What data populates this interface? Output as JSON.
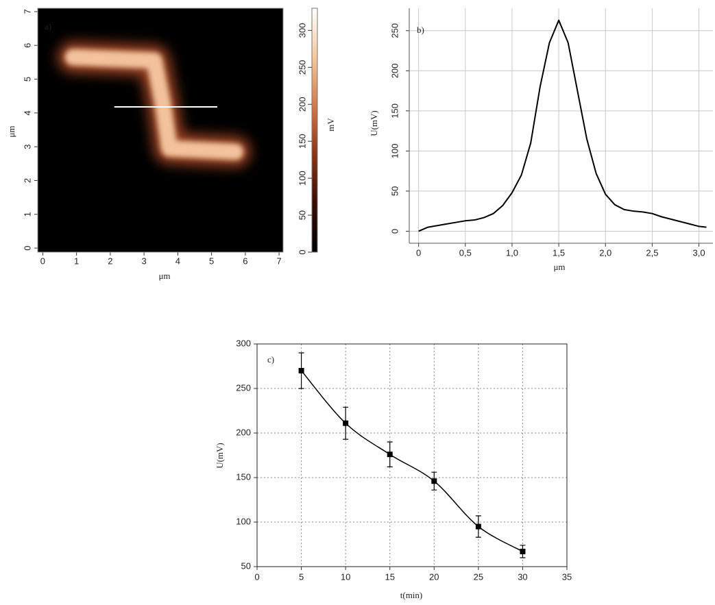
{
  "chart_data": [
    {
      "type": "heatmap",
      "panel_label": "a)",
      "xlabel": "μm",
      "ylabel": "μm",
      "colorbar_label": "mV",
      "xlim": [
        -0.15,
        7.12
      ],
      "ylim": [
        -0.12,
        7.1
      ],
      "xticks": [
        0,
        1,
        2,
        3,
        4,
        5,
        6,
        7
      ],
      "yticks": [
        0,
        1,
        2,
        3,
        4,
        5,
        6,
        7
      ],
      "clim": [
        0,
        330
      ],
      "cticks": [
        0,
        50,
        100,
        150,
        200,
        250,
        300
      ],
      "colormap": [
        "#000000",
        "#3a0c04",
        "#8a3418",
        "#d27a48",
        "#f4c8a0",
        "#ffffff"
      ],
      "ridge": {
        "x": [
          0.9,
          3.3,
          3.55,
          3.75,
          5.7
        ],
        "y": [
          5.65,
          5.55,
          4.3,
          2.95,
          2.85
        ],
        "value": 260
      },
      "profile_line": {
        "x": [
          2.12,
          5.17
        ],
        "y": [
          4.18,
          4.18
        ],
        "color": "#ffffff"
      }
    },
    {
      "type": "line",
      "panel_label": "b)",
      "xlabel": "μm",
      "ylabel": "U(mV)",
      "color": "#000000",
      "grid": true,
      "xlim": [
        -0.1,
        3.15
      ],
      "ylim": [
        -15,
        278
      ],
      "xticks": [
        0,
        {
          "value": 0.5,
          "label": "0,5"
        },
        {
          "value": 1.0,
          "label": "1,0"
        },
        {
          "value": 1.5,
          "label": "1,5"
        },
        {
          "value": 2.0,
          "label": "2,0"
        },
        {
          "value": 2.5,
          "label": "2,5"
        },
        {
          "value": 3.0,
          "label": "3,0"
        }
      ],
      "yticks": [
        0,
        50,
        100,
        150,
        200,
        250
      ],
      "x": [
        0,
        0.1,
        0.2,
        0.3,
        0.4,
        0.5,
        0.6,
        0.7,
        0.8,
        0.9,
        1.0,
        1.1,
        1.2,
        1.3,
        1.4,
        1.5,
        1.6,
        1.7,
        1.8,
        1.9,
        2.0,
        2.1,
        2.2,
        2.3,
        2.4,
        2.5,
        2.6,
        2.7,
        2.8,
        2.9,
        3.0,
        3.08
      ],
      "values": [
        0,
        5,
        7,
        9,
        11,
        13,
        14,
        17,
        22,
        32,
        48,
        70,
        110,
        180,
        235,
        263,
        235,
        175,
        115,
        72,
        46,
        33,
        27,
        25,
        24,
        22,
        18,
        15,
        12,
        9,
        6,
        5
      ]
    },
    {
      "type": "errorbar",
      "panel_label": "c)",
      "xlabel": "t(min)",
      "ylabel": "U(mV)",
      "color": "#000000",
      "grid": true,
      "xlim": [
        0,
        35
      ],
      "ylim": [
        50,
        300
      ],
      "xticks": [
        0,
        5,
        10,
        15,
        20,
        25,
        30,
        35
      ],
      "yticks": [
        50,
        100,
        150,
        200,
        250,
        300
      ],
      "x": [
        5,
        10,
        15,
        20,
        25,
        30
      ],
      "values": [
        270,
        211,
        176,
        146,
        95,
        67
      ],
      "errors": [
        20,
        18,
        14,
        10,
        12,
        7
      ]
    }
  ]
}
